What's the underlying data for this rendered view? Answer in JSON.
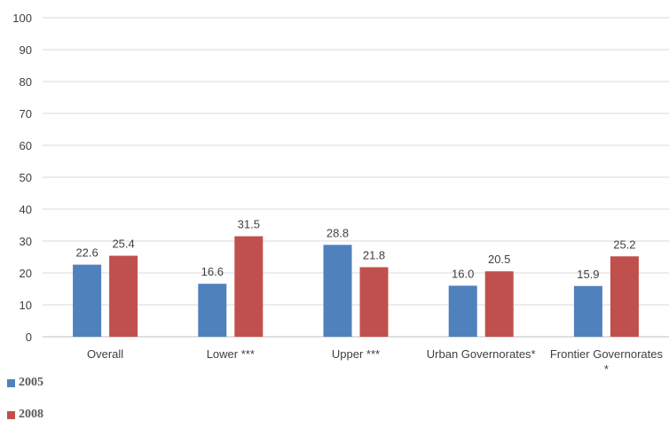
{
  "chart_data": {
    "type": "bar",
    "categories": [
      "Overall",
      "Lower ***",
      "Upper ***",
      "Urban Governorates*",
      "Frontier Governorates*"
    ],
    "category_lines": [
      [
        "Overall"
      ],
      [
        "Lower ***"
      ],
      [
        "Upper ***"
      ],
      [
        "Urban Governorates*"
      ],
      [
        "Frontier Governorates",
        "*"
      ]
    ],
    "series": [
      {
        "name": "2005",
        "color": "#4f81bd",
        "values": [
          22.6,
          16.6,
          28.8,
          16.0,
          15.9
        ],
        "labels": [
          "22.6",
          "16.6",
          "28.8",
          "16.0",
          "15.9"
        ]
      },
      {
        "name": "2008",
        "color": "#c0504d",
        "values": [
          25.4,
          31.5,
          21.8,
          20.5,
          25.2
        ],
        "labels": [
          "25.4",
          "31.5",
          "21.8",
          "20.5",
          "25.2"
        ]
      }
    ],
    "ylim": [
      0,
      100
    ],
    "yticks": [
      "0",
      "10",
      "20",
      "30",
      "40",
      "50",
      "60",
      "70",
      "80",
      "90",
      "100"
    ],
    "grid": true,
    "legend_position": "bottom-left"
  }
}
